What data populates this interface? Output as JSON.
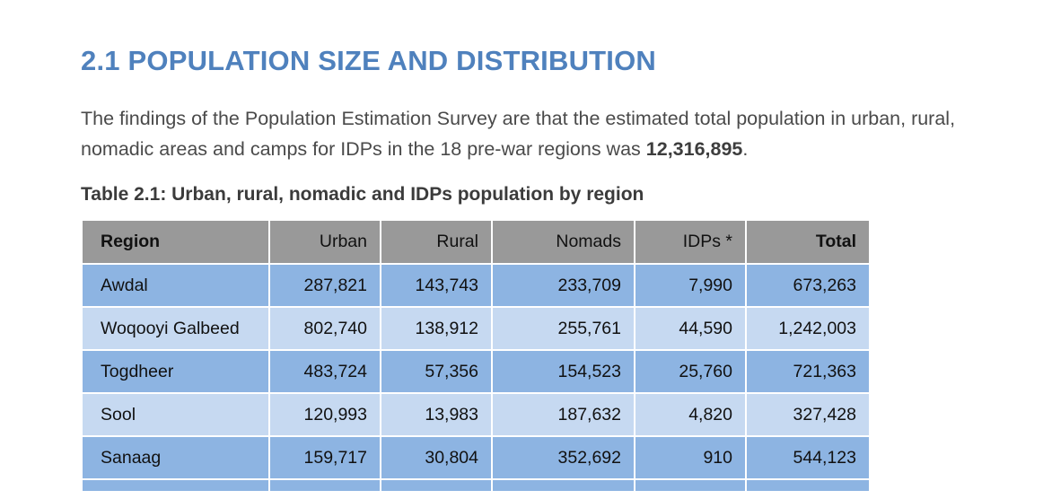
{
  "section": {
    "title": "2.1 POPULATION SIZE AND DISTRIBUTION",
    "paragraph_prefix": "The findings of the Population Estimation Survey are that the estimated total population in urban, rural, nomadic areas and camps for IDPs in the 18 pre-war regions was ",
    "paragraph_total": "12,316,895",
    "paragraph_suffix": "."
  },
  "table": {
    "caption": "Table 2.1: Urban, rural, nomadic and IDPs population by region",
    "headers": [
      "Region",
      "Urban",
      "Rural",
      "Nomads",
      "IDPs *",
      "Total"
    ],
    "rows": [
      [
        "Awdal",
        "287,821",
        "143,743",
        "233,709",
        "7,990",
        "673,263"
      ],
      [
        "Woqooyi Galbeed",
        "802,740",
        "138,912",
        "255,761",
        "44,590",
        "1,242,003"
      ],
      [
        "Togdheer",
        "483,724",
        "57,356",
        "154,523",
        "25,760",
        "721,363"
      ],
      [
        "Sool",
        "120,993",
        "13,983",
        "187,632",
        "4,820",
        "327,428"
      ],
      [
        "Sanaag",
        "159,717",
        "30,804",
        "352,692",
        "910",
        "544,123"
      ]
    ]
  }
}
